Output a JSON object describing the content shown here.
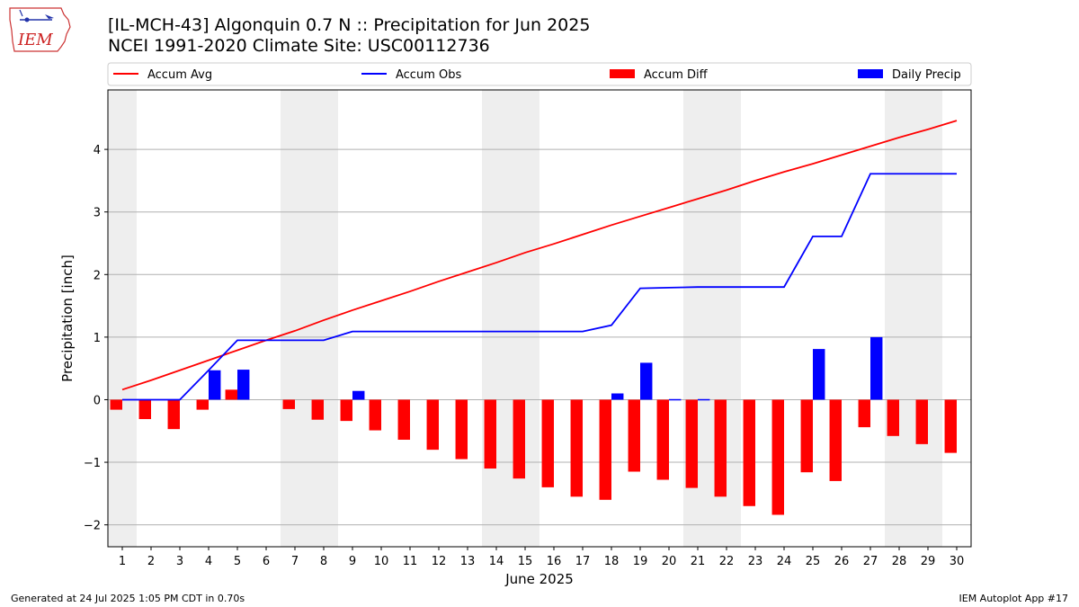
{
  "header": {
    "title_line1": "[IL-MCH-43] Algonquin 0.7 N :: Precipitation for Jun 2025",
    "title_line2": "NCEI 1991-2020 Climate Site: USC00112736"
  },
  "logo": {
    "text": "IEM",
    "icon": "iowa-state-map-logo"
  },
  "footer": {
    "left": "Generated at 24 Jul 2025 1:05 PM CDT in 0.70s",
    "right": "IEM Autoplot App #17"
  },
  "colors": {
    "avg": "#ff0000",
    "obs": "#0000ff",
    "diff": "#ff0000",
    "daily": "#0000ff",
    "weekend": "#eeeeee",
    "grid": "#b0b0b0"
  },
  "chart_data": {
    "type": "bar",
    "xlabel": "June 2025",
    "ylabel": "Precipitation [inch]",
    "ylim": [
      -2.35,
      4.95
    ],
    "yticks": [
      -2,
      -1,
      0,
      1,
      2,
      3,
      4
    ],
    "ytick_labels": [
      "−2",
      "−1",
      "0",
      "1",
      "2",
      "3",
      "4"
    ],
    "grid": true,
    "legend_position": "top",
    "weekend_days": [
      1,
      7,
      8,
      14,
      15,
      21,
      22,
      28,
      29
    ],
    "days": [
      1,
      2,
      3,
      4,
      5,
      6,
      7,
      8,
      9,
      10,
      11,
      12,
      13,
      14,
      15,
      16,
      17,
      18,
      19,
      20,
      21,
      22,
      23,
      24,
      25,
      26,
      27,
      28,
      29,
      30
    ],
    "series": [
      {
        "name": "Accum Avg",
        "kind": "line",
        "values": [
          0.16,
          0.31,
          0.47,
          0.63,
          0.79,
          0.95,
          1.1,
          1.27,
          1.43,
          1.58,
          1.73,
          1.89,
          2.04,
          2.19,
          2.35,
          2.49,
          2.64,
          2.79,
          2.93,
          3.07,
          3.21,
          3.35,
          3.5,
          3.64,
          3.77,
          3.91,
          4.05,
          4.19,
          4.32,
          4.46
        ]
      },
      {
        "name": "Accum Obs",
        "kind": "line",
        "values": [
          0.0,
          0.0,
          0.0,
          0.47,
          0.95,
          0.95,
          0.95,
          0.95,
          1.09,
          1.09,
          1.09,
          1.09,
          1.09,
          1.09,
          1.09,
          1.09,
          1.09,
          1.19,
          1.78,
          1.79,
          1.8,
          1.8,
          1.8,
          1.8,
          2.61,
          2.61,
          3.61,
          3.61,
          3.61,
          3.61
        ]
      },
      {
        "name": "Accum Diff",
        "kind": "bar",
        "values": [
          -0.16,
          -0.31,
          -0.47,
          -0.16,
          0.16,
          0.0,
          -0.15,
          -0.32,
          -0.34,
          -0.49,
          -0.64,
          -0.8,
          -0.95,
          -1.1,
          -1.26,
          -1.4,
          -1.55,
          -1.6,
          -1.15,
          -1.28,
          -1.41,
          -1.55,
          -1.7,
          -1.84,
          -1.16,
          -1.3,
          -0.44,
          -0.58,
          -0.71,
          -0.85
        ]
      },
      {
        "name": "Daily Precip",
        "kind": "bar",
        "values": [
          0.0,
          0.0,
          0.0,
          0.47,
          0.48,
          0.0,
          0.0,
          0.0,
          0.14,
          0.0,
          0.0,
          0.0,
          0.0,
          0.0,
          0.0,
          0.0,
          0.0,
          0.1,
          0.59,
          0.01,
          0.01,
          0.0,
          0.0,
          0.0,
          0.81,
          0.0,
          1.0,
          0.0,
          0.0,
          0.0
        ]
      }
    ]
  }
}
